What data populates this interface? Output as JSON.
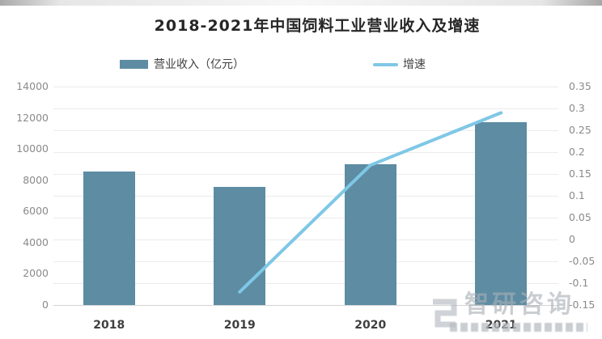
{
  "title": "2018-2021年中国饲料工业营业收入及增速",
  "legend": [
    {
      "label": "营业收入（亿元）",
      "marker": "bar-swatch",
      "color": "#5d8ca3"
    },
    {
      "label": "增速",
      "marker": "line-swatch",
      "color": "#7fc7e6"
    }
  ],
  "watermark": {
    "brand": "智研咨询",
    "logo_icon": "zhiyan-logo"
  },
  "chart_data": {
    "type": "bar",
    "title": "2018-2021年中国饲料工业营业收入及增速",
    "categories": [
      "2018",
      "2019",
      "2020",
      "2021"
    ],
    "series": [
      {
        "name": "营业收入（亿元）",
        "type": "bar",
        "axis": "left",
        "color": "#5d8ca3",
        "values": [
          8550,
          7550,
          9000,
          11700
        ]
      },
      {
        "name": "增速",
        "type": "line",
        "axis": "right",
        "color": "#7fc7e6",
        "values": [
          null,
          -0.12,
          0.17,
          0.29
        ]
      }
    ],
    "left_axis": {
      "min": 0,
      "max": 14000,
      "step": 2000,
      "tick_values": [
        14000,
        12000,
        10000,
        8000,
        6000,
        4000,
        2000,
        0
      ],
      "tick_labels": [
        "14000",
        "12000",
        "10000",
        "8000",
        "6000",
        "4000",
        "2000",
        "0"
      ]
    },
    "right_axis": {
      "min": -0.15,
      "max": 0.35,
      "step": 0.05,
      "tick_values": [
        0.35,
        0.3,
        0.25,
        0.2,
        0.15,
        0.1,
        0.05,
        0,
        -0.05,
        -0.1,
        -0.15
      ],
      "tick_labels": [
        "0.35",
        "0.3",
        "0.25",
        "0.2",
        "0.15",
        "0.1",
        "0.05",
        "0",
        "-0.05",
        "-0.1",
        "-0.15"
      ]
    },
    "grid": true,
    "legend_position": "top"
  }
}
